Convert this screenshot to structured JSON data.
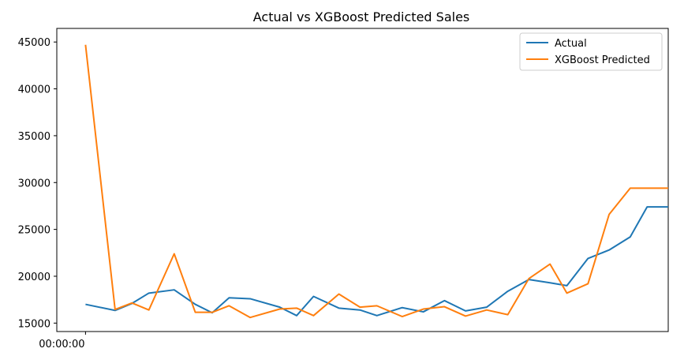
{
  "chart_data": {
    "type": "line",
    "title": "Actual vs XGBoost Predicted Sales",
    "xlabel": "",
    "ylabel": "",
    "x_tick_label": "00:00:00",
    "y_ticks": [
      15000,
      20000,
      25000,
      30000,
      35000,
      40000,
      45000
    ],
    "ylim": [
      14100,
      46450
    ],
    "xlim": [
      -1.7,
      34.5
    ],
    "grid": false,
    "legend_position": "top-right",
    "x": [
      0,
      1.75,
      2.75,
      3.75,
      5.25,
      6.5,
      7.5,
      8.5,
      9.75,
      11.5,
      12.5,
      13.5,
      15,
      16.25,
      17.25,
      18.75,
      20,
      21.25,
      22.5,
      23.75,
      25,
      26.25,
      27.5,
      28.5,
      29.75,
      31,
      32.25,
      33.25,
      34.5
    ],
    "series": [
      {
        "name": "Actual",
        "color": "#1f77b4",
        "values": [
          17000,
          16350,
          17100,
          18200,
          18550,
          17000,
          16100,
          17700,
          17600,
          16700,
          15800,
          17850,
          16600,
          16400,
          15800,
          16650,
          16200,
          17400,
          16300,
          16700,
          18400,
          19650,
          19300,
          19000,
          21900,
          22800,
          24200,
          27400,
          27400
        ]
      },
      {
        "name": "XGBoost Predicted",
        "color": "#ff7f0e",
        "values": [
          44700,
          16450,
          17150,
          16400,
          22400,
          16150,
          16150,
          16850,
          15600,
          16500,
          16600,
          15800,
          18100,
          16700,
          16850,
          15700,
          16500,
          16750,
          15750,
          16400,
          15900,
          19750,
          21300,
          18200,
          19200,
          26600,
          29400,
          29400,
          29400
        ]
      }
    ]
  }
}
